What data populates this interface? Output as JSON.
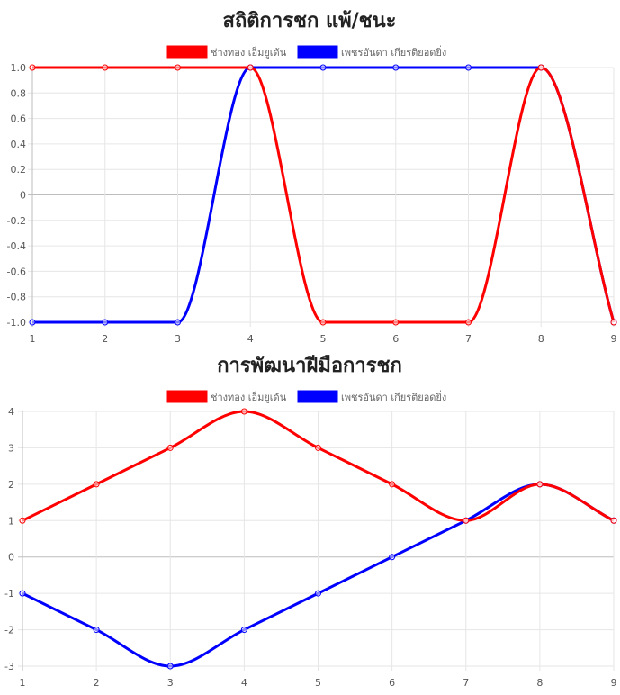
{
  "chart_data": [
    {
      "type": "line",
      "title": "สถิติการชก แพ้/ชนะ",
      "categories": [
        "1",
        "2",
        "3",
        "4",
        "5",
        "6",
        "7",
        "8",
        "9"
      ],
      "series": [
        {
          "name": "ช่างทอง เอ็มยูเด้น",
          "color": "#ff0000",
          "values": [
            1,
            1,
            1,
            1,
            -1,
            -1,
            -1,
            1,
            -1
          ]
        },
        {
          "name": "เพชรอันดา เกียรติยอดยิ่ง",
          "color": "#0000ff",
          "values": [
            -1,
            -1,
            -1,
            1,
            1,
            1,
            1,
            1,
            -1
          ]
        }
      ],
      "y_ticks": [
        "1.0",
        "0.8",
        "0.6",
        "0.4",
        "0.2",
        "0",
        "-0.2",
        "-0.4",
        "-0.6",
        "-0.8",
        "-1.0"
      ],
      "ylim": [
        -1,
        1
      ],
      "grid": true,
      "legend": "top"
    },
    {
      "type": "line",
      "title": "การพัฒนาฝีมือการชก",
      "categories": [
        "1",
        "2",
        "3",
        "4",
        "5",
        "6",
        "7",
        "8",
        "9"
      ],
      "series": [
        {
          "name": "ช่างทอง เอ็มยูเด้น",
          "color": "#ff0000",
          "values": [
            1,
            2,
            3,
            4,
            3,
            2,
            1,
            2,
            1
          ]
        },
        {
          "name": "เพชรอันดา เกียรติยอดยิ่ง",
          "color": "#0000ff",
          "values": [
            -1,
            -2,
            -3,
            -2,
            -1,
            0,
            1,
            2,
            1
          ]
        }
      ],
      "y_ticks": [
        "4",
        "3",
        "2",
        "1",
        "0",
        "-1",
        "-2",
        "-3"
      ],
      "ylim": [
        -3,
        4
      ],
      "grid": true,
      "legend": "top"
    }
  ]
}
